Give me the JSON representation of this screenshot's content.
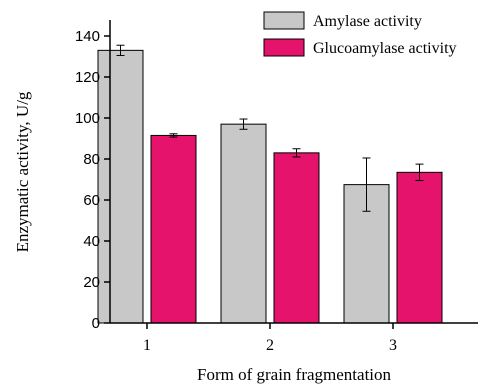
{
  "chart_data": {
    "type": "bar",
    "categories": [
      "1",
      "2",
      "3"
    ],
    "series": [
      {
        "name": "Amylase activity",
        "values": [
          133,
          97,
          67.5
        ],
        "errors": [
          2.5,
          2.5,
          13
        ],
        "color": "#c8c8c8"
      },
      {
        "name": "Glucoamylase activity",
        "values": [
          91.5,
          83,
          73.5
        ],
        "errors": [
          0.8,
          2,
          4
        ],
        "color": "#e5136c"
      }
    ],
    "xlabel": "Form of grain fragmentation",
    "ylabel": "Enzymatic activity, U/g",
    "ylim": [
      0,
      150
    ],
    "yticks": [
      "0",
      "20",
      "40",
      "60",
      "80",
      "100",
      "120",
      "140"
    ],
    "grid": false,
    "legend_position": "top-right"
  }
}
